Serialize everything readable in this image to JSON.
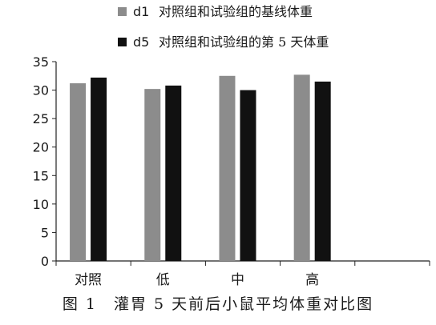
{
  "chart_data": {
    "type": "bar",
    "categories": [
      "对照",
      "低",
      "中",
      "高",
      ""
    ],
    "series": [
      {
        "name": "d1",
        "label": "对照组和试验组的基线体重",
        "color": "#8c8c8c",
        "values": [
          31.2,
          30.2,
          32.5,
          32.7,
          null
        ]
      },
      {
        "name": "d5",
        "label": "对照组和试验组的第 5 天体重",
        "color": "#111111",
        "values": [
          32.2,
          30.8,
          30.0,
          31.5,
          null
        ]
      }
    ],
    "ylim": [
      0,
      35
    ],
    "yticks": [
      0,
      5,
      10,
      15,
      20,
      25,
      30,
      35
    ],
    "legend_position": "top",
    "grid": false
  },
  "caption": "图 1　灌胃 5 天前后小鼠平均体重对比图"
}
